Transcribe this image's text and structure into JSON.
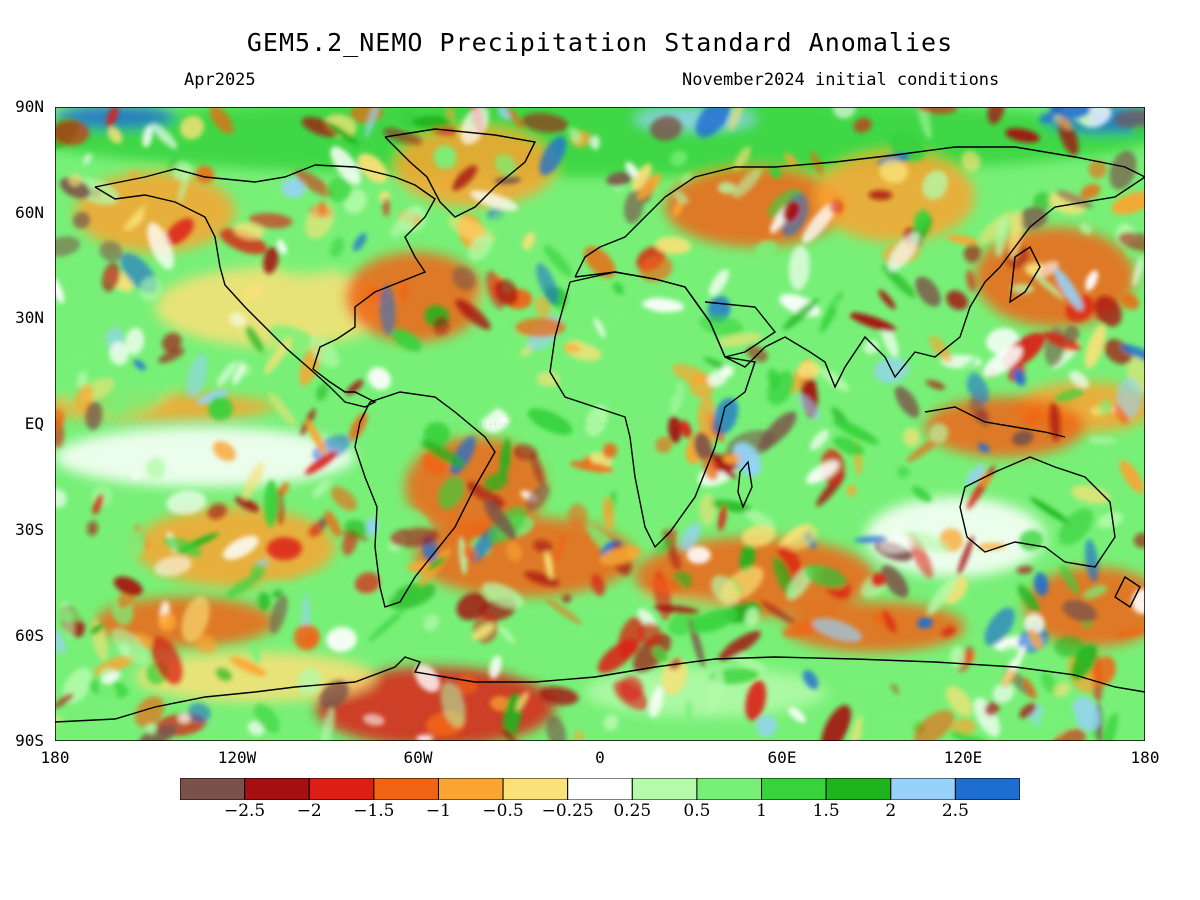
{
  "header": {
    "title": "GEM5.2_NEMO Precipitation Standard Anomalies",
    "valid_month": "Apr2025",
    "init_note": "November2024 initial conditions"
  },
  "axes": {
    "lat_labels": [
      "90N",
      "60N",
      "30N",
      "EQ",
      "30S",
      "60S",
      "90S"
    ],
    "lon_labels": [
      "180",
      "120W",
      "60W",
      "0",
      "60E",
      "120E",
      "180"
    ]
  },
  "legend": {
    "colors": [
      "#7b5249",
      "#a50f0f",
      "#dc1e14",
      "#f06414",
      "#faa532",
      "#fae178",
      "#ffffff",
      "#b4faaa",
      "#78f078",
      "#37d23c",
      "#1eb41e",
      "#96d2fa",
      "#1e6ed2"
    ],
    "labels": [
      "−2.5",
      "−2",
      "−1.5",
      "−1",
      "−0.5",
      "−0.25",
      "0.25",
      "0.5",
      "1",
      "1.5",
      "2",
      "2.5"
    ]
  }
}
